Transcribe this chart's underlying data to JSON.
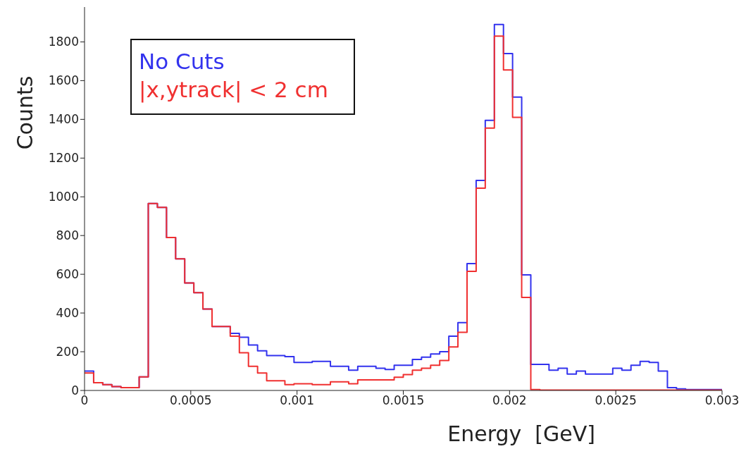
{
  "chart_data": {
    "type": "histogram",
    "xlabel": "Energy  [GeV]",
    "ylabel": "Counts",
    "bins": [
      0,
      4.29e-05,
      8.57e-05,
      0.0001286,
      0.0001714,
      0.0002143,
      0.0002571,
      0.0003,
      0.0003429,
      0.0003857,
      0.0004286,
      0.0004714,
      0.0005143,
      0.0005571,
      0.0006,
      0.0006429,
      0.0006857,
      0.0007286,
      0.0007714,
      0.0008143,
      0.0008571,
      0.0009,
      0.0009429,
      0.0009857,
      0.0010286,
      0.0010714,
      0.0011143,
      0.0011571,
      0.0012,
      0.0012429,
      0.0012857,
      0.0013286,
      0.0013714,
      0.0014143,
      0.0014571,
      0.0015,
      0.0015429,
      0.0015857,
      0.0016286,
      0.0016714,
      0.0017143,
      0.0017571,
      0.0018,
      0.0018429,
      0.0018857,
      0.0019286,
      0.0019714,
      0.0020143,
      0.0020571,
      0.0021,
      0.0021429,
      0.0021857,
      0.0022286,
      0.0022714,
      0.0023143,
      0.0023571,
      0.0024,
      0.0024429,
      0.0024857,
      0.0025286,
      0.0025714,
      0.0026143,
      0.0026571,
      0.0027,
      0.0027429,
      0.0027857,
      0.0028286,
      0.0028714,
      0.0029143,
      0.0029571,
      0.003
    ],
    "series": [
      {
        "name": "No Cuts",
        "color": "#3333ee",
        "values": [
          100,
          40,
          30,
          20,
          15,
          15,
          70,
          965,
          945,
          790,
          680,
          555,
          505,
          420,
          330,
          330,
          295,
          275,
          235,
          205,
          180,
          180,
          175,
          145,
          145,
          150,
          150,
          125,
          125,
          105,
          125,
          125,
          115,
          108,
          130,
          130,
          160,
          172,
          188,
          200,
          280,
          350,
          655,
          1085,
          1395,
          1890,
          1740,
          1515,
          597,
          135,
          135,
          105,
          115,
          85,
          100,
          85,
          85,
          85,
          115,
          105,
          130,
          150,
          145,
          100,
          15,
          8,
          5,
          5,
          5,
          5
        ]
      },
      {
        "name": "|x,ytrack| < 2 cm",
        "color": "#f03030",
        "values": [
          90,
          40,
          30,
          20,
          15,
          15,
          70,
          965,
          945,
          790,
          680,
          555,
          505,
          420,
          330,
          330,
          280,
          195,
          125,
          90,
          50,
          50,
          30,
          35,
          35,
          30,
          30,
          45,
          45,
          35,
          55,
          55,
          55,
          55,
          68,
          82,
          105,
          115,
          130,
          155,
          225,
          300,
          615,
          1045,
          1355,
          1830,
          1655,
          1410,
          480,
          5,
          2,
          2,
          2,
          2,
          2,
          2,
          2,
          2,
          2,
          2,
          2,
          2,
          2,
          2,
          2,
          2,
          2,
          2,
          2,
          2
        ]
      }
    ],
    "xlim": [
      0,
      0.003
    ],
    "xticks": [
      0,
      0.0005,
      0.001,
      0.0015,
      0.002,
      0.0025,
      0.003
    ],
    "ylim": [
      0,
      1980
    ],
    "yticks": [
      0,
      200,
      400,
      600,
      800,
      1000,
      1200,
      1400,
      1600,
      1800
    ],
    "grid": false,
    "legend": "top left"
  }
}
